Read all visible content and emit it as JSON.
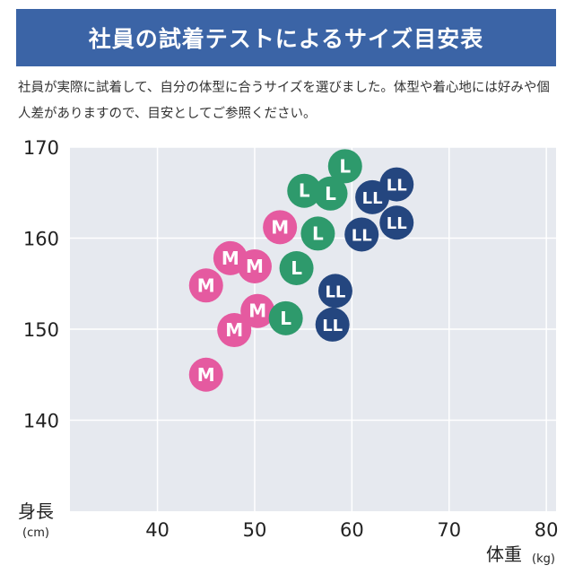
{
  "header": {
    "title": "社員の試着テストによるサイズ目安表"
  },
  "note": {
    "text": "社員が実際に試着して、自分の体型に合うサイズを選びました。体型や着心地には好みや個人差がありますので、目安としてご参照ください。"
  },
  "chart_data": {
    "type": "scatter",
    "ylabel": "身長",
    "ylabel_unit": "(cm)",
    "xlabel": "体重",
    "xlabel_unit": "(kg)",
    "xlim": [
      31,
      81
    ],
    "ylim": [
      130,
      170
    ],
    "xticks": [
      40,
      50,
      60,
      70,
      80
    ],
    "yticks": [
      140,
      150,
      160,
      170
    ],
    "grid": true,
    "colors": {
      "M": "#e55aa0",
      "L": "#2e9a6c",
      "LL": "#24467f",
      "plot_bg": "#e6e9ef"
    },
    "series": [
      {
        "name": "M",
        "points": [
          {
            "x": 45.0,
            "y": 145.0
          },
          {
            "x": 45.0,
            "y": 154.8
          },
          {
            "x": 47.5,
            "y": 157.8
          },
          {
            "x": 47.9,
            "y": 149.9
          },
          {
            "x": 50.0,
            "y": 156.9
          },
          {
            "x": 50.3,
            "y": 152.0
          },
          {
            "x": 52.6,
            "y": 161.2
          }
        ]
      },
      {
        "name": "L",
        "points": [
          {
            "x": 53.2,
            "y": 151.2
          },
          {
            "x": 54.3,
            "y": 156.7
          },
          {
            "x": 55.1,
            "y": 165.2
          },
          {
            "x": 56.5,
            "y": 160.5
          },
          {
            "x": 57.8,
            "y": 164.9
          },
          {
            "x": 59.3,
            "y": 167.9
          }
        ]
      },
      {
        "name": "LL",
        "points": [
          {
            "x": 58.0,
            "y": 150.5
          },
          {
            "x": 58.3,
            "y": 154.2
          },
          {
            "x": 61.0,
            "y": 160.4
          },
          {
            "x": 62.1,
            "y": 164.5
          },
          {
            "x": 64.6,
            "y": 165.9
          },
          {
            "x": 64.6,
            "y": 161.7
          }
        ]
      }
    ]
  }
}
